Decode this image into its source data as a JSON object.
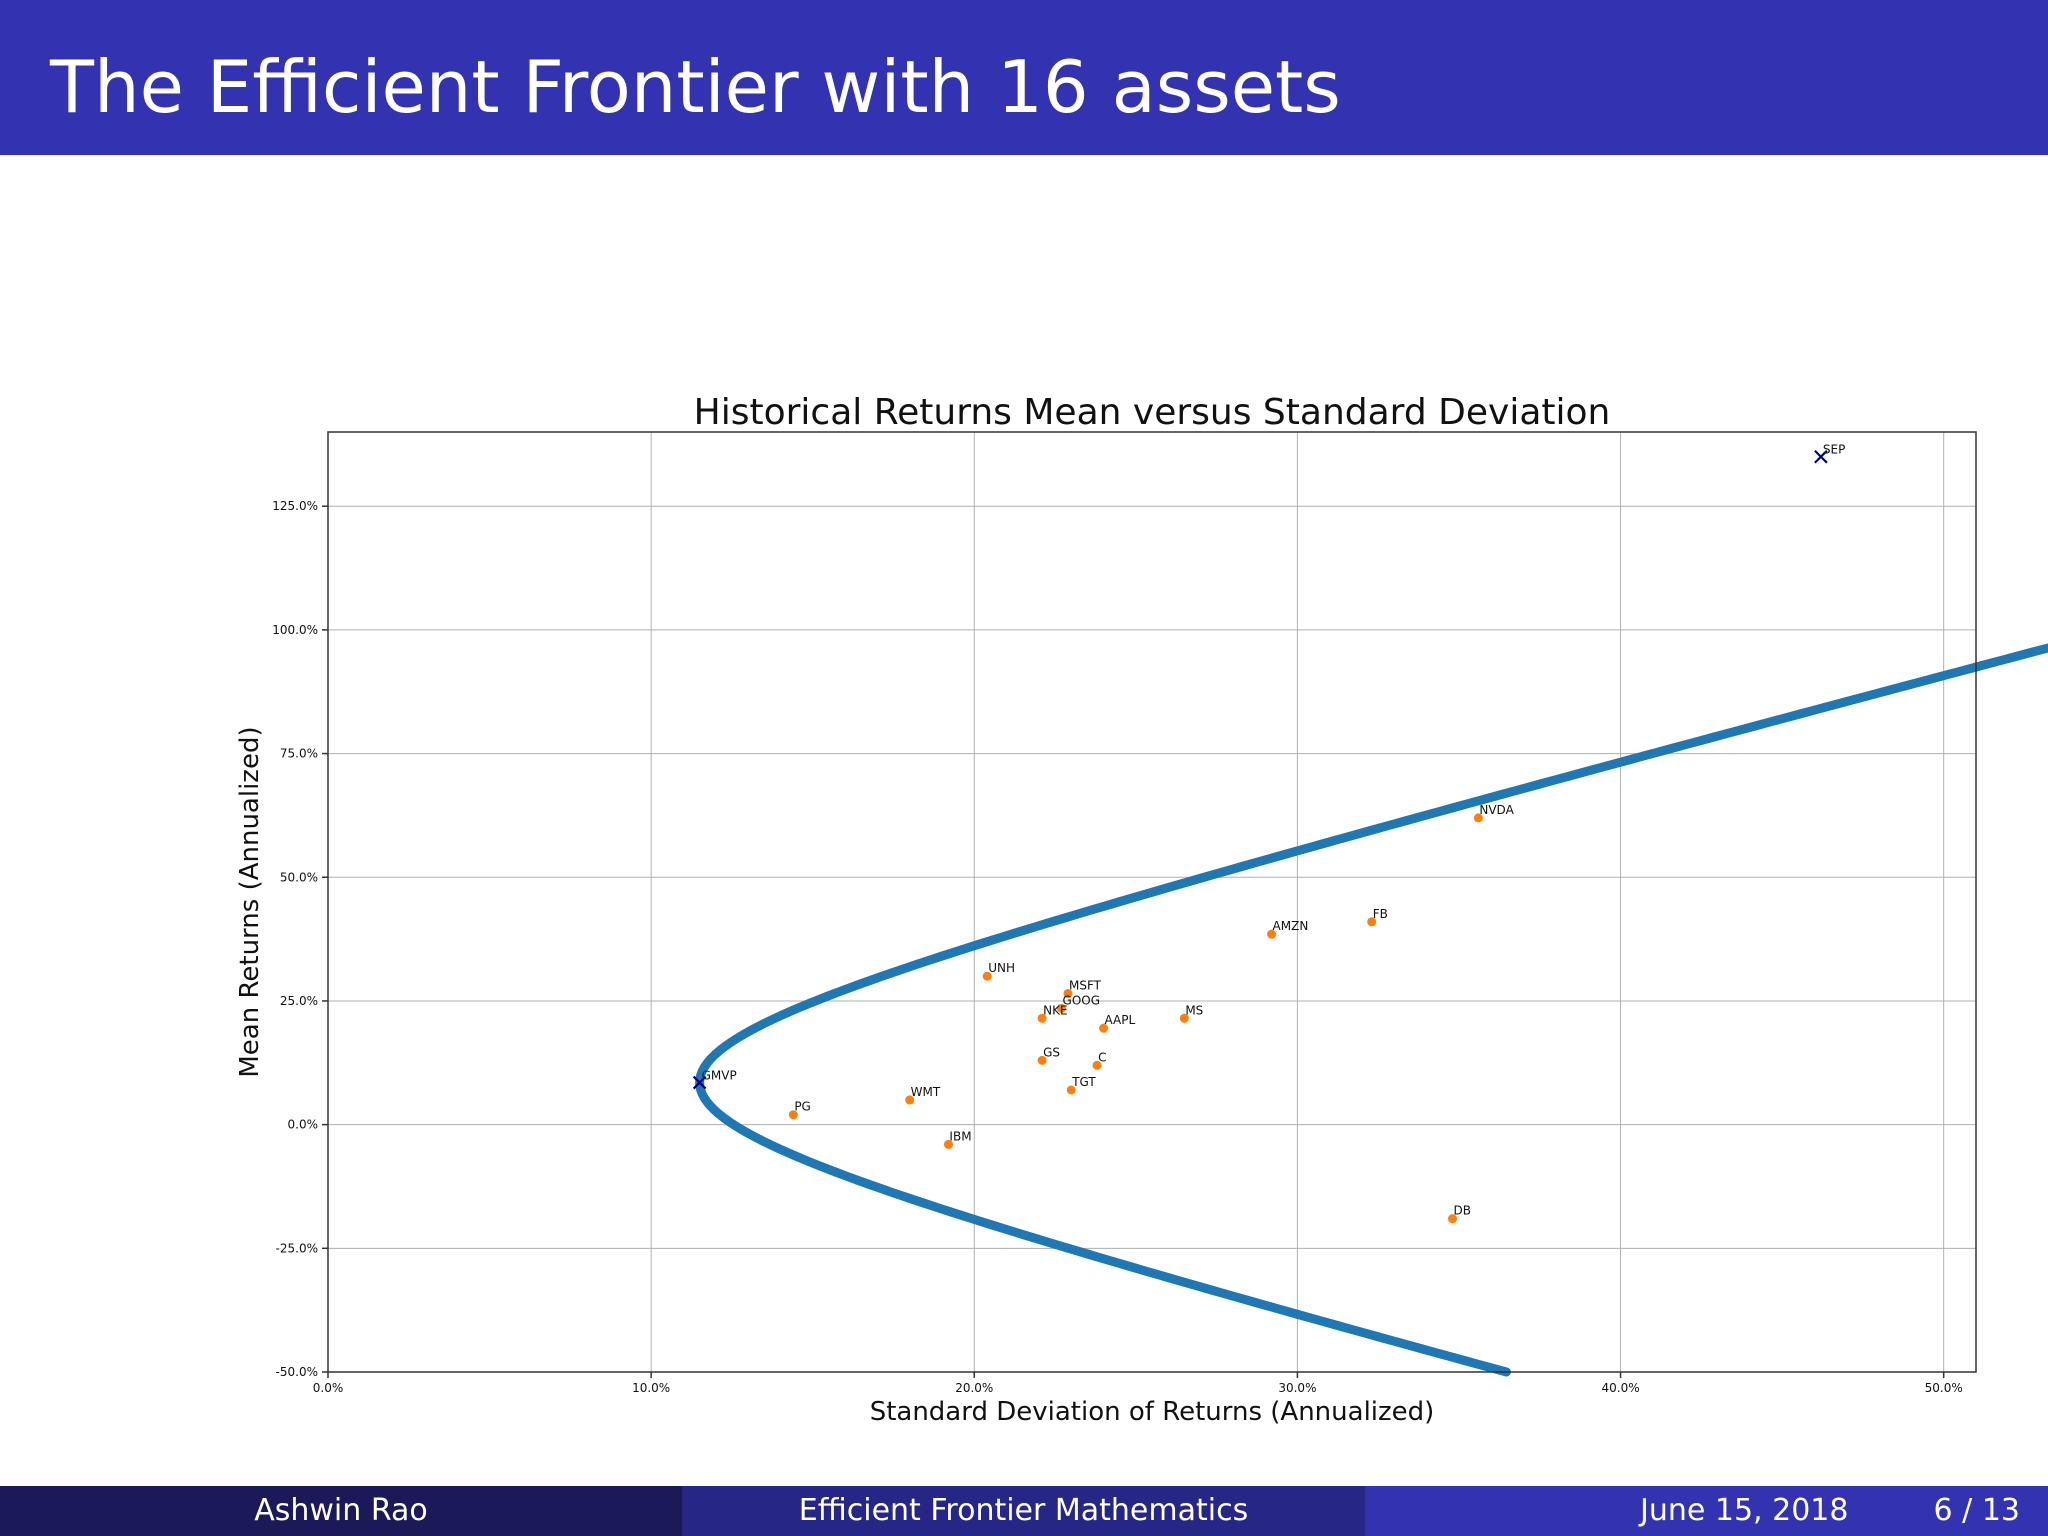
{
  "slide": {
    "title": "The Efficient Frontier with 16 assets"
  },
  "footer": {
    "author": "Ashwin Rao",
    "talk_title": "Efficient Frontier Mathematics",
    "date": "June 15, 2018",
    "page": "6 / 13"
  },
  "chart_data": {
    "type": "scatter",
    "title": "Historical Returns Mean versus Standard Deviation",
    "xlabel": "Standard Deviation of Returns (Annualized)",
    "ylabel": "Mean Returns (Annualized)",
    "xlim": [
      0,
      0.51
    ],
    "ylim": [
      -0.5,
      1.4
    ],
    "xticks": [
      0,
      0.1,
      0.2,
      0.3,
      0.4,
      0.5
    ],
    "yticks": [
      -0.5,
      -0.25,
      0,
      0.25,
      0.5,
      0.75,
      1.0,
      1.25
    ],
    "tick_format": "percent",
    "grid": true,
    "colors": {
      "frontier": "#1f77b4",
      "assets": "#ff7f0e",
      "special": "#000080"
    },
    "frontier": {
      "min_std": 0.115,
      "min_return": 0.085,
      "quad_coef": 0.35,
      "y_range": [
        -0.5,
        1.4
      ]
    },
    "assets": [
      {
        "label": "NVDA",
        "x": 0.356,
        "y": 0.62
      },
      {
        "label": "FB",
        "x": 0.323,
        "y": 0.41
      },
      {
        "label": "AMZN",
        "x": 0.292,
        "y": 0.385
      },
      {
        "label": "UNH",
        "x": 0.204,
        "y": 0.3
      },
      {
        "label": "MSFT",
        "x": 0.229,
        "y": 0.265
      },
      {
        "label": "GOOG",
        "x": 0.227,
        "y": 0.235
      },
      {
        "label": "NKE",
        "x": 0.221,
        "y": 0.215
      },
      {
        "label": "MS",
        "x": 0.265,
        "y": 0.215
      },
      {
        "label": "AAPL",
        "x": 0.24,
        "y": 0.195
      },
      {
        "label": "GS",
        "x": 0.221,
        "y": 0.13
      },
      {
        "label": "C",
        "x": 0.238,
        "y": 0.12
      },
      {
        "label": "TGT",
        "x": 0.23,
        "y": 0.07
      },
      {
        "label": "WMT",
        "x": 0.18,
        "y": 0.05
      },
      {
        "label": "PG",
        "x": 0.144,
        "y": 0.02
      },
      {
        "label": "IBM",
        "x": 0.192,
        "y": -0.04
      },
      {
        "label": "DB",
        "x": 0.348,
        "y": -0.19
      }
    ],
    "special_points": [
      {
        "label": "GMVP",
        "x": 0.115,
        "y": 0.085
      },
      {
        "label": "SEP",
        "x": 0.462,
        "y": 1.35
      }
    ]
  }
}
